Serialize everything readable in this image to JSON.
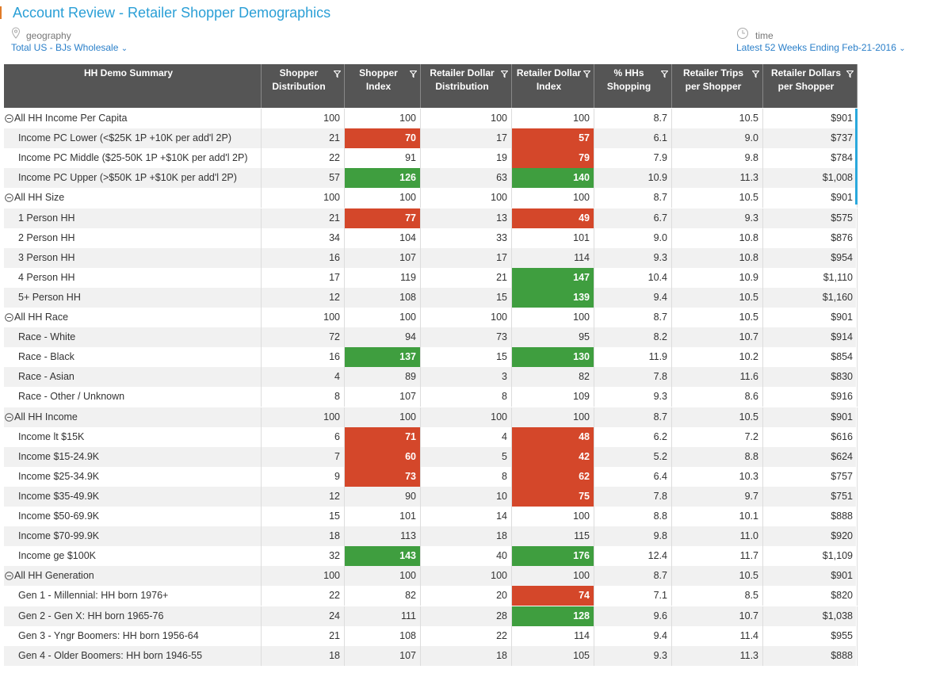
{
  "header": {
    "title": "Account Review - Retailer Shopper Demographics",
    "geography_label": "geography",
    "geography_value": "Total US - BJs Wholesale",
    "time_label": "time",
    "time_value": "Latest 52 Weeks Ending Feb-21-2016"
  },
  "colors": {
    "red": "#d4472a",
    "green": "#3f9e3f"
  },
  "table": {
    "columns": [
      "HH Demo Summary",
      "Shopper Distribution",
      "Shopper Index",
      "Retailer Dollar Distribution",
      "Retailer Dollar Index",
      "% HHs Shopping",
      "Retailer Trips per Shopper",
      "Retailer Dollars per Shopper"
    ],
    "rows": [
      {
        "label": "All HH Income Per Capita",
        "group": true,
        "cells": [
          "100",
          "100",
          "100",
          "100",
          "8.7",
          "10.5",
          "$901"
        ]
      },
      {
        "label": "Income PC Lower (<$25K 1P +10K per add'l 2P)",
        "cells": [
          "21",
          "70",
          "17",
          "57",
          "6.1",
          "9.0",
          "$737"
        ],
        "red": [
          1,
          3
        ]
      },
      {
        "label": "Income PC Middle ($25-50K 1P +$10K per add'l 2P)",
        "cells": [
          "22",
          "91",
          "19",
          "79",
          "7.9",
          "9.8",
          "$784"
        ],
        "red": [
          3
        ]
      },
      {
        "label": "Income PC Upper (>$50K 1P +$10K per add'l 2P)",
        "cells": [
          "57",
          "126",
          "63",
          "140",
          "10.9",
          "11.3",
          "$1,008"
        ],
        "green": [
          1,
          3
        ]
      },
      {
        "label": "All HH Size",
        "group": true,
        "cells": [
          "100",
          "100",
          "100",
          "100",
          "8.7",
          "10.5",
          "$901"
        ]
      },
      {
        "label": "1 Person HH",
        "cells": [
          "21",
          "77",
          "13",
          "49",
          "6.7",
          "9.3",
          "$575"
        ],
        "red": [
          1,
          3
        ]
      },
      {
        "label": "2 Person HH",
        "cells": [
          "34",
          "104",
          "33",
          "101",
          "9.0",
          "10.8",
          "$876"
        ]
      },
      {
        "label": "3 Person HH",
        "cells": [
          "16",
          "107",
          "17",
          "114",
          "9.3",
          "10.8",
          "$954"
        ]
      },
      {
        "label": "4 Person HH",
        "cells": [
          "17",
          "119",
          "21",
          "147",
          "10.4",
          "10.9",
          "$1,110"
        ],
        "green": [
          3
        ]
      },
      {
        "label": "5+ Person HH",
        "cells": [
          "12",
          "108",
          "15",
          "139",
          "9.4",
          "10.5",
          "$1,160"
        ],
        "green": [
          3
        ]
      },
      {
        "label": "All HH Race",
        "group": true,
        "cells": [
          "100",
          "100",
          "100",
          "100",
          "8.7",
          "10.5",
          "$901"
        ]
      },
      {
        "label": "Race - White",
        "cells": [
          "72",
          "94",
          "73",
          "95",
          "8.2",
          "10.7",
          "$914"
        ]
      },
      {
        "label": "Race - Black",
        "cells": [
          "16",
          "137",
          "15",
          "130",
          "11.9",
          "10.2",
          "$854"
        ],
        "green": [
          1,
          3
        ]
      },
      {
        "label": "Race - Asian",
        "cells": [
          "4",
          "89",
          "3",
          "82",
          "7.8",
          "11.6",
          "$830"
        ]
      },
      {
        "label": "Race - Other / Unknown",
        "cells": [
          "8",
          "107",
          "8",
          "109",
          "9.3",
          "8.6",
          "$916"
        ]
      },
      {
        "label": "All HH Income",
        "group": true,
        "cells": [
          "100",
          "100",
          "100",
          "100",
          "8.7",
          "10.5",
          "$901"
        ]
      },
      {
        "label": "Income lt $15K",
        "cells": [
          "6",
          "71",
          "4",
          "48",
          "6.2",
          "7.2",
          "$616"
        ],
        "red": [
          1,
          3
        ]
      },
      {
        "label": "Income $15-24.9K",
        "cells": [
          "7",
          "60",
          "5",
          "42",
          "5.2",
          "8.8",
          "$624"
        ],
        "red": [
          1,
          3
        ]
      },
      {
        "label": "Income $25-34.9K",
        "cells": [
          "9",
          "73",
          "8",
          "62",
          "6.4",
          "10.3",
          "$757"
        ],
        "red": [
          1,
          3
        ]
      },
      {
        "label": "Income $35-49.9K",
        "cells": [
          "12",
          "90",
          "10",
          "75",
          "7.8",
          "9.7",
          "$751"
        ],
        "red": [
          3
        ]
      },
      {
        "label": "Income $50-69.9K",
        "cells": [
          "15",
          "101",
          "14",
          "100",
          "8.8",
          "10.1",
          "$888"
        ]
      },
      {
        "label": "Income $70-99.9K",
        "cells": [
          "18",
          "113",
          "18",
          "115",
          "9.8",
          "11.0",
          "$920"
        ]
      },
      {
        "label": "Income ge $100K",
        "cells": [
          "32",
          "143",
          "40",
          "176",
          "12.4",
          "11.7",
          "$1,109"
        ],
        "green": [
          1,
          3
        ]
      },
      {
        "label": "All HH Generation",
        "group": true,
        "cells": [
          "100",
          "100",
          "100",
          "100",
          "8.7",
          "10.5",
          "$901"
        ]
      },
      {
        "label": "Gen 1 - Millennial: HH born 1976+",
        "cells": [
          "22",
          "82",
          "20",
          "74",
          "7.1",
          "8.5",
          "$820"
        ],
        "red": [
          3
        ]
      },
      {
        "label": "Gen 2 - Gen X: HH born 1965-76",
        "cells": [
          "24",
          "111",
          "28",
          "128",
          "9.6",
          "10.7",
          "$1,038"
        ],
        "green": [
          3
        ]
      },
      {
        "label": "Gen 3 - Yngr Boomers: HH born 1956-64",
        "cells": [
          "21",
          "108",
          "22",
          "114",
          "9.4",
          "11.4",
          "$955"
        ]
      },
      {
        "label": "Gen 4 - Older Boomers: HH born 1946-55",
        "cells": [
          "18",
          "107",
          "18",
          "105",
          "9.3",
          "11.3",
          "$888"
        ]
      }
    ]
  }
}
